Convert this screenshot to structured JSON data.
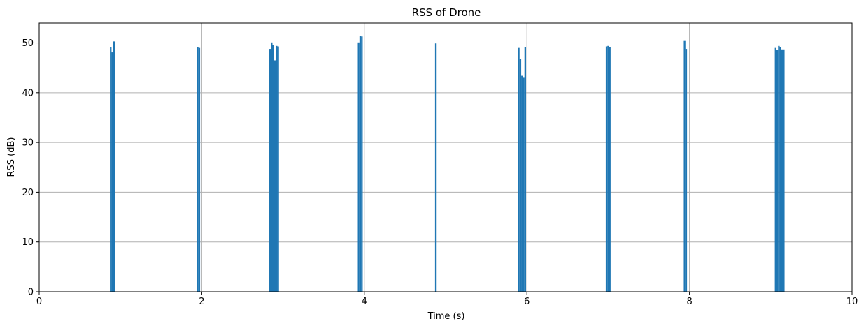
{
  "chart_data": {
    "type": "bar",
    "title": "RSS of Drone",
    "xlabel": "Time (s)",
    "ylabel": "RSS (dB)",
    "xlim": [
      0,
      10
    ],
    "ylim": [
      0,
      54
    ],
    "xticks": [
      0,
      2,
      4,
      6,
      8,
      10
    ],
    "yticks": [
      0,
      10,
      20,
      30,
      40,
      50
    ],
    "grid": true,
    "bar_color": "#1f77b4",
    "bar_width": 0.02,
    "x": [
      0.88,
      0.9,
      0.92,
      1.95,
      1.97,
      2.84,
      2.86,
      2.88,
      2.9,
      2.92,
      2.94,
      3.93,
      3.95,
      3.97,
      4.88,
      5.9,
      5.92,
      5.94,
      5.96,
      5.98,
      6.98,
      7.0,
      7.02,
      7.94,
      7.96,
      9.06,
      9.08,
      9.1,
      9.12,
      9.14,
      9.16
    ],
    "values": [
      49.2,
      48.1,
      50.3,
      49.2,
      49.0,
      48.8,
      50.1,
      49.6,
      46.5,
      49.4,
      49.3,
      50.1,
      51.4,
      51.3,
      49.9,
      49.0,
      46.8,
      43.4,
      43.0,
      49.2,
      49.3,
      49.4,
      49.1,
      50.4,
      48.8,
      49.0,
      48.6,
      49.4,
      49.2,
      48.7,
      48.7
    ]
  }
}
